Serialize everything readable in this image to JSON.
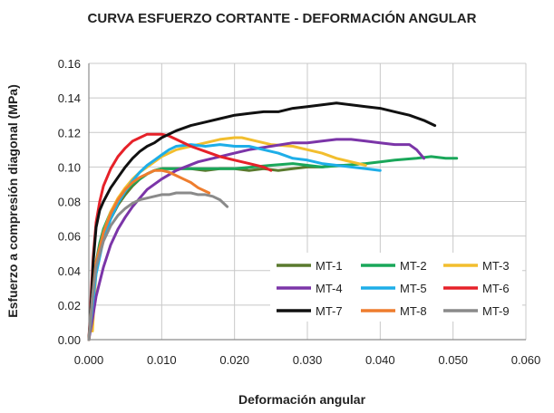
{
  "chart_data": {
    "type": "line",
    "title": "CURVA ESFUERZO CORTANTE - DEFORMACIÓN ANGULAR",
    "xlabel": "Deformación angular",
    "ylabel": "Esfuerzo a compresión diagonal (MPa)",
    "xlim": [
      0,
      0.06
    ],
    "ylim": [
      0,
      0.16
    ],
    "xticks": [
      "0.000",
      "0.010",
      "0.020",
      "0.030",
      "0.040",
      "0.050",
      "0.060"
    ],
    "yticks": [
      "0.00",
      "0.02",
      "0.04",
      "0.06",
      "0.08",
      "0.10",
      "0.12",
      "0.14",
      "0.16"
    ],
    "grid": true,
    "legend_position": "bottom-right",
    "series": [
      {
        "name": "MT-1",
        "color": "#5a7a2e",
        "x": [
          0,
          0.0005,
          0.001,
          0.0015,
          0.002,
          0.003,
          0.004,
          0.005,
          0.006,
          0.007,
          0.008,
          0.009,
          0.01,
          0.012,
          0.014,
          0.016,
          0.018,
          0.02,
          0.022,
          0.024,
          0.026,
          0.028,
          0.03,
          0.032,
          0.034,
          0.035
        ],
        "y": [
          0,
          0.022,
          0.04,
          0.052,
          0.06,
          0.07,
          0.078,
          0.084,
          0.089,
          0.093,
          0.096,
          0.098,
          0.099,
          0.099,
          0.099,
          0.098,
          0.099,
          0.099,
          0.098,
          0.099,
          0.098,
          0.099,
          0.1,
          0.1,
          0.101,
          0.101
        ]
      },
      {
        "name": "MT-2",
        "color": "#1aa75a",
        "x": [
          0,
          0.0005,
          0.001,
          0.0015,
          0.002,
          0.003,
          0.004,
          0.005,
          0.006,
          0.007,
          0.008,
          0.009,
          0.01,
          0.012,
          0.015,
          0.018,
          0.02,
          0.025,
          0.028,
          0.03,
          0.032,
          0.035,
          0.038,
          0.04,
          0.042,
          0.045,
          0.047,
          0.049,
          0.0505
        ],
        "y": [
          0,
          0.025,
          0.045,
          0.056,
          0.064,
          0.074,
          0.081,
          0.086,
          0.09,
          0.093,
          0.096,
          0.098,
          0.099,
          0.099,
          0.099,
          0.099,
          0.099,
          0.101,
          0.102,
          0.101,
          0.1,
          0.101,
          0.102,
          0.103,
          0.104,
          0.105,
          0.106,
          0.105,
          0.105
        ]
      },
      {
        "name": "MT-3",
        "color": "#f2be2e",
        "x": [
          0.0005,
          0.001,
          0.002,
          0.003,
          0.004,
          0.005,
          0.006,
          0.007,
          0.008,
          0.009,
          0.01,
          0.012,
          0.014,
          0.016,
          0.018,
          0.02,
          0.021,
          0.023,
          0.025,
          0.028,
          0.03,
          0.032,
          0.034,
          0.036,
          0.038
        ],
        "y": [
          0.005,
          0.04,
          0.062,
          0.074,
          0.082,
          0.088,
          0.093,
          0.097,
          0.1,
          0.103,
          0.106,
          0.11,
          0.112,
          0.114,
          0.116,
          0.117,
          0.117,
          0.115,
          0.113,
          0.112,
          0.11,
          0.108,
          0.105,
          0.103,
          0.101
        ]
      },
      {
        "name": "MT-4",
        "color": "#7b35a8",
        "x": [
          0,
          0.0005,
          0.001,
          0.002,
          0.003,
          0.004,
          0.005,
          0.006,
          0.007,
          0.008,
          0.01,
          0.012,
          0.015,
          0.018,
          0.02,
          0.022,
          0.025,
          0.028,
          0.03,
          0.032,
          0.034,
          0.036,
          0.038,
          0.04,
          0.042,
          0.044,
          0.045,
          0.046
        ],
        "y": [
          0,
          0.012,
          0.025,
          0.042,
          0.055,
          0.064,
          0.071,
          0.077,
          0.082,
          0.087,
          0.093,
          0.098,
          0.103,
          0.106,
          0.108,
          0.11,
          0.112,
          0.114,
          0.114,
          0.115,
          0.116,
          0.116,
          0.115,
          0.114,
          0.113,
          0.113,
          0.11,
          0.105
        ]
      },
      {
        "name": "MT-5",
        "color": "#1eaee8",
        "x": [
          0,
          0.0005,
          0.001,
          0.002,
          0.003,
          0.004,
          0.005,
          0.006,
          0.007,
          0.008,
          0.009,
          0.01,
          0.011,
          0.012,
          0.014,
          0.016,
          0.018,
          0.02,
          0.022,
          0.024,
          0.026,
          0.028,
          0.03,
          0.032,
          0.034,
          0.036,
          0.038,
          0.04
        ],
        "y": [
          0,
          0.02,
          0.038,
          0.058,
          0.07,
          0.079,
          0.086,
          0.092,
          0.097,
          0.101,
          0.104,
          0.107,
          0.11,
          0.112,
          0.113,
          0.112,
          0.113,
          0.112,
          0.112,
          0.11,
          0.108,
          0.105,
          0.104,
          0.102,
          0.101,
          0.1,
          0.099,
          0.098
        ]
      },
      {
        "name": "MT-6",
        "color": "#e62129",
        "x": [
          0,
          0.0003,
          0.0006,
          0.001,
          0.0015,
          0.002,
          0.003,
          0.004,
          0.005,
          0.006,
          0.007,
          0.008,
          0.009,
          0.01,
          0.011,
          0.012,
          0.014,
          0.016,
          0.018,
          0.02,
          0.022,
          0.024,
          0.025
        ],
        "y": [
          0,
          0.025,
          0.048,
          0.068,
          0.08,
          0.089,
          0.099,
          0.106,
          0.111,
          0.115,
          0.117,
          0.119,
          0.119,
          0.119,
          0.118,
          0.116,
          0.112,
          0.109,
          0.106,
          0.104,
          0.102,
          0.1,
          0.098
        ]
      },
      {
        "name": "MT-7",
        "color": "#111111",
        "x": [
          0,
          0.0003,
          0.0006,
          0.001,
          0.0015,
          0.002,
          0.003,
          0.004,
          0.005,
          0.006,
          0.007,
          0.008,
          0.009,
          0.01,
          0.012,
          0.014,
          0.016,
          0.018,
          0.02,
          0.022,
          0.024,
          0.026,
          0.028,
          0.03,
          0.032,
          0.034,
          0.036,
          0.038,
          0.04,
          0.042,
          0.044,
          0.046,
          0.0475
        ],
        "y": [
          0,
          0.02,
          0.045,
          0.065,
          0.075,
          0.08,
          0.088,
          0.094,
          0.1,
          0.105,
          0.109,
          0.112,
          0.114,
          0.117,
          0.121,
          0.124,
          0.126,
          0.128,
          0.13,
          0.131,
          0.132,
          0.132,
          0.134,
          0.135,
          0.136,
          0.137,
          0.136,
          0.135,
          0.134,
          0.132,
          0.13,
          0.127,
          0.124
        ]
      },
      {
        "name": "MT-8",
        "color": "#ee7d2e",
        "x": [
          0,
          0.0005,
          0.001,
          0.002,
          0.003,
          0.004,
          0.005,
          0.006,
          0.007,
          0.008,
          0.009,
          0.01,
          0.011,
          0.012,
          0.013,
          0.014,
          0.015,
          0.0165
        ],
        "y": [
          0,
          0.025,
          0.045,
          0.062,
          0.073,
          0.081,
          0.087,
          0.091,
          0.094,
          0.096,
          0.098,
          0.098,
          0.097,
          0.095,
          0.093,
          0.091,
          0.088,
          0.085
        ]
      },
      {
        "name": "MT-9",
        "color": "#8a8a8a",
        "x": [
          0,
          0.0005,
          0.001,
          0.002,
          0.003,
          0.004,
          0.005,
          0.006,
          0.007,
          0.008,
          0.009,
          0.01,
          0.011,
          0.012,
          0.013,
          0.014,
          0.015,
          0.016,
          0.017,
          0.018,
          0.019
        ],
        "y": [
          0,
          0.025,
          0.042,
          0.057,
          0.066,
          0.072,
          0.076,
          0.079,
          0.081,
          0.082,
          0.083,
          0.084,
          0.084,
          0.085,
          0.085,
          0.085,
          0.084,
          0.084,
          0.083,
          0.081,
          0.077
        ]
      }
    ]
  }
}
